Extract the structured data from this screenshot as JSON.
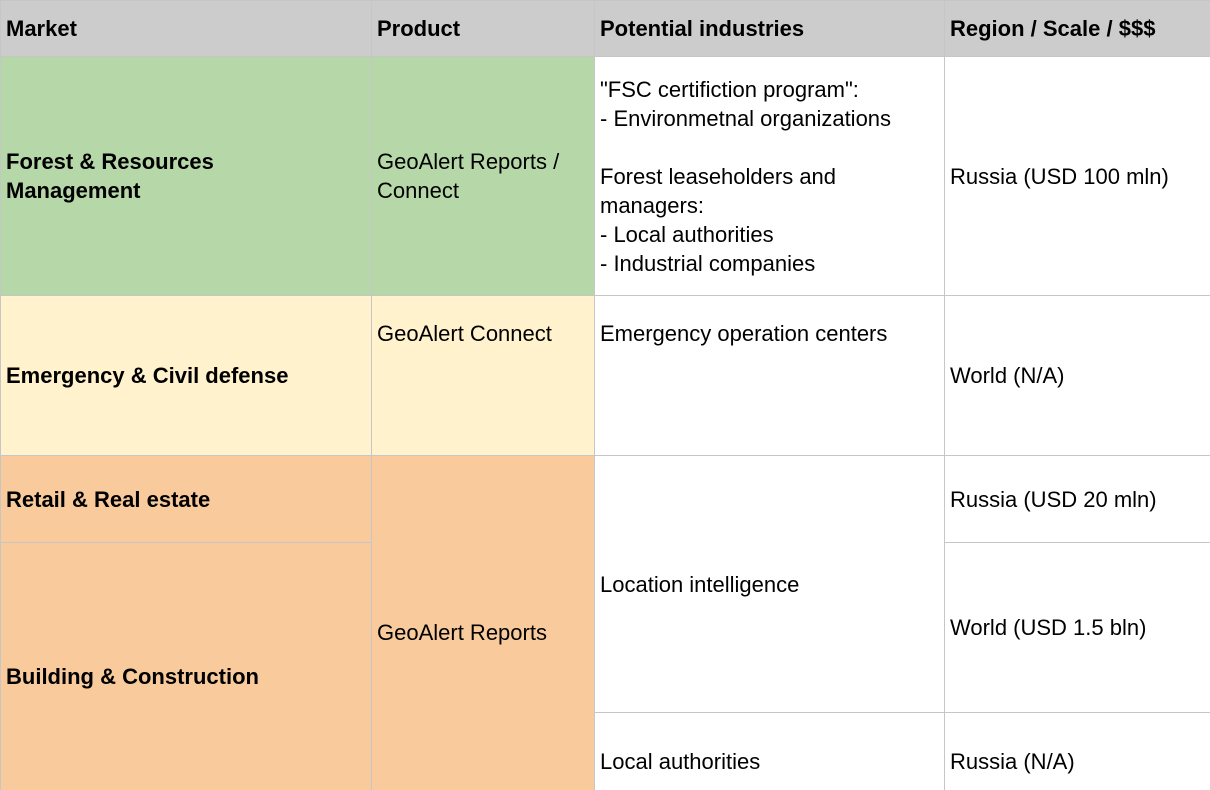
{
  "header": {
    "market": "Market",
    "product": "Product",
    "industries": "Potential industries",
    "region": "Region / Scale / $$$"
  },
  "rows": [
    {
      "market": "Forest & Resources\nManagement",
      "product": "GeoAlert Reports /\nConnect",
      "industries": "\"FSC certifiction program\":\n- Environmetnal organizations\n\nForest leaseholders and\nmanagers:\n- Local authorities\n- Industrial companies",
      "region": "Russia (USD 100 mln)"
    },
    {
      "market": "Emergency & Civil defense",
      "product": "GeoAlert Connect",
      "industries": "Emergency operation centers",
      "region": "World (N/A)"
    },
    {
      "market": "Retail & Real estate",
      "product": "GeoAlert Reports",
      "industries": "Location intelligence",
      "region": "Russia (USD 20 mln)"
    },
    {
      "market": "Building & Construction",
      "region": "World (USD 1.5 bln)"
    },
    {
      "industries": "Local authorities",
      "region": "Russia (N/A)"
    }
  ],
  "colors": {
    "header_bg": "#cccccc",
    "forest_bg": "#b6d7a8",
    "emergency_bg": "#fff2cc",
    "retail_bg": "#f9cb9c",
    "grid_line": "#c6c6c6"
  }
}
